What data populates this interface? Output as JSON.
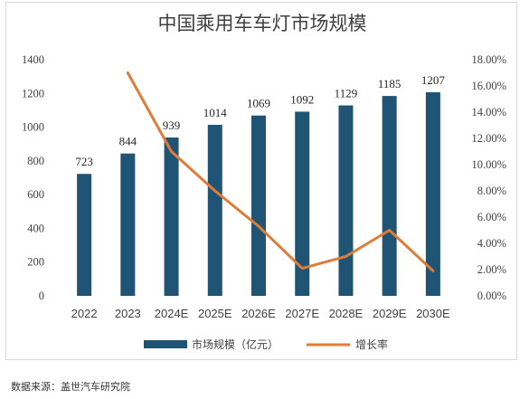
{
  "chart_data": {
    "type": "bar",
    "title": "中国乘用车车灯市场规模",
    "categories": [
      "2022",
      "2023",
      "2024E",
      "2025E",
      "2026E",
      "2027E",
      "2028E",
      "2029E",
      "2030E"
    ],
    "series": [
      {
        "name": "市场规模（亿元）",
        "type": "bar",
        "axis": "left",
        "values": [
          723,
          844,
          939,
          1014,
          1069,
          1092,
          1129,
          1185,
          1207
        ],
        "data_labels": [
          "723",
          "844",
          "939",
          "1014",
          "1069",
          "1092",
          "1129",
          "1185",
          "1207"
        ]
      },
      {
        "name": "增长率",
        "type": "line",
        "axis": "right",
        "values": [
          null,
          0.17,
          0.11,
          0.08,
          0.053,
          0.021,
          0.03,
          0.05,
          0.019
        ]
      }
    ],
    "y_left": {
      "ylim": [
        0,
        1400
      ],
      "ticks": [
        0,
        200,
        400,
        600,
        800,
        1000,
        1200,
        1400
      ],
      "tick_labels": [
        "0",
        "200",
        "400",
        "600",
        "800",
        "1000",
        "1200",
        "1400"
      ]
    },
    "y_right": {
      "ylim": [
        0,
        0.18
      ],
      "ticks": [
        0,
        0.02,
        0.04,
        0.06,
        0.08,
        0.1,
        0.12,
        0.14,
        0.16,
        0.18
      ],
      "tick_labels": [
        "0.00%",
        "2.00%",
        "4.00%",
        "6.00%",
        "8.00%",
        "10.00%",
        "12.00%",
        "14.00%",
        "16.00%",
        "18.00%"
      ]
    },
    "grid": false,
    "legend_position": "bottom",
    "colors": {
      "bar": "#1f5475",
      "line": "#e07b39"
    }
  },
  "source_note": "数据来源：盖世汽车研究院"
}
